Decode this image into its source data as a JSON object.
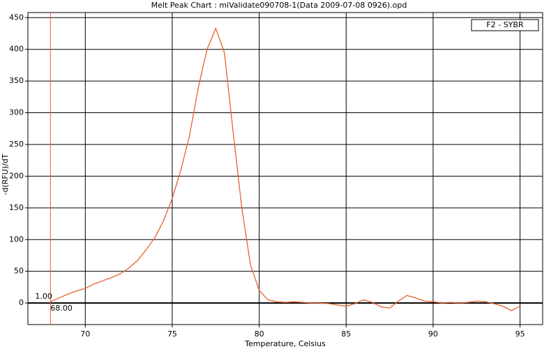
{
  "chart_data": {
    "type": "line",
    "title": "Melt Peak Chart : miValidate090708-1(Data 2009-07-08 0926).opd",
    "x_label": "Temperature, Celsius",
    "y_label": "-d(RFU)/dT",
    "x": [
      68,
      68.5,
      69,
      69.5,
      70,
      70.5,
      71,
      71.5,
      72,
      72.5,
      73,
      73.5,
      74,
      74.5,
      75,
      75.5,
      76,
      76.5,
      77,
      77.5,
      78,
      78.5,
      79,
      79.5,
      80,
      80.5,
      81,
      81.5,
      82,
      82.5,
      83,
      83.5,
      84,
      84.5,
      85,
      85.5,
      86,
      86.5,
      87,
      87.5,
      88,
      88.5,
      89,
      89.5,
      90,
      90.5,
      91,
      91.5,
      92,
      92.5,
      93,
      93.5,
      94,
      94.5,
      95
    ],
    "series": [
      {
        "name": "F2 - SYBR",
        "color": "#e8602c",
        "values": [
          2,
          8,
          14,
          19,
          23,
          30,
          35,
          40,
          46,
          55,
          67,
          84,
          103,
          130,
          165,
          210,
          265,
          340,
          400,
          433,
          395,
          270,
          150,
          60,
          20,
          5,
          2,
          1,
          2,
          1,
          0,
          0,
          -1,
          -3,
          -5,
          -1,
          5,
          1,
          -6,
          -8,
          3,
          12,
          8,
          3,
          2,
          0,
          1,
          0,
          1,
          3,
          2,
          -1,
          -5,
          -12,
          -5
        ]
      }
    ],
    "xlim": [
      66.7,
      96.3
    ],
    "xticks": [
      70,
      75,
      80,
      85,
      90,
      95
    ],
    "ylim": [
      -34,
      458
    ],
    "yticks": [
      0,
      50,
      100,
      150,
      200,
      250,
      300,
      350,
      400,
      450
    ],
    "grid": true,
    "legend": "upper right",
    "cursor": {
      "x": {
        "value": 68,
        "label": "68.00"
      },
      "y": {
        "value": 1,
        "label": "1.00"
      },
      "color": "#e8602c"
    }
  }
}
